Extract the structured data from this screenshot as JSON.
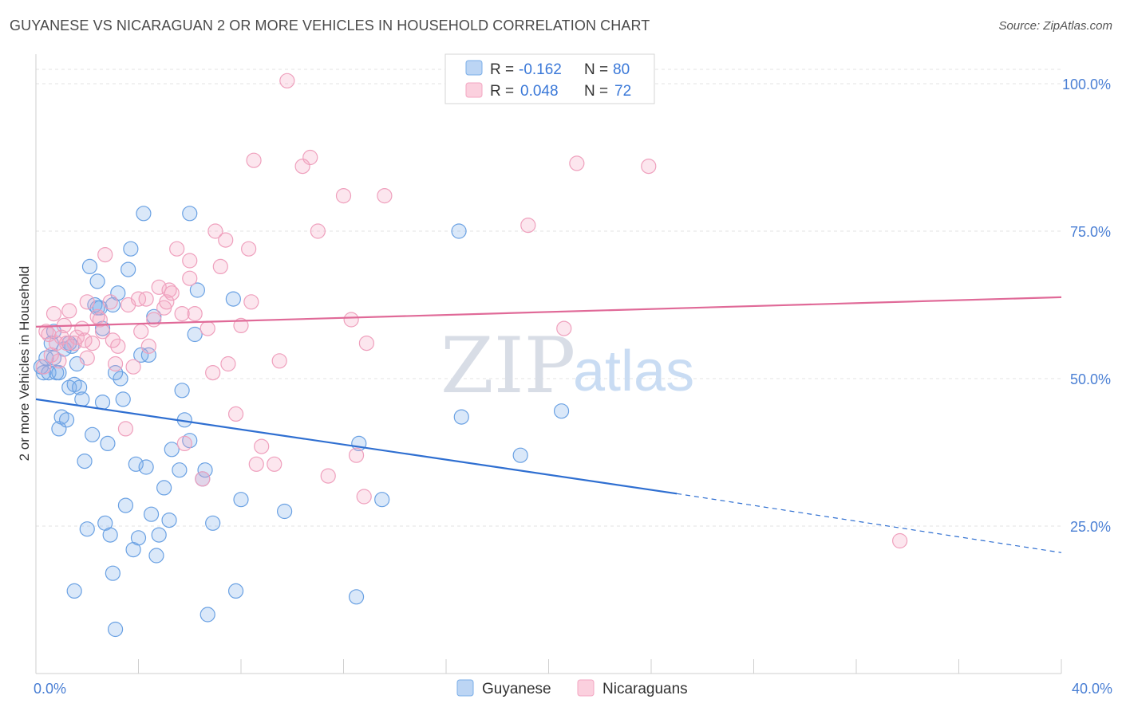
{
  "header": {
    "title": "GUYANESE VS NICARAGUAN 2 OR MORE VEHICLES IN HOUSEHOLD CORRELATION CHART",
    "source": "Source: ZipAtlas.com"
  },
  "watermark": {
    "zip": "ZIP",
    "atlas": "atlas"
  },
  "legend": {
    "rows": [
      {
        "r_label": "R =",
        "r_value": "-0.162",
        "n_label": "N =",
        "n_value": "80"
      },
      {
        "r_label": "R =",
        "r_value": "0.048",
        "n_label": "N =",
        "n_value": "72"
      }
    ]
  },
  "chart_data": {
    "type": "scatter",
    "title": "GUYANESE VS NICARAGUAN 2 OR MORE VEHICLES IN HOUSEHOLD CORRELATION CHART",
    "xlabel": "",
    "ylabel": "2 or more Vehicles in Household",
    "xlim": [
      0,
      40
    ],
    "ylim": [
      0,
      105
    ],
    "x_ticks": [
      0,
      40
    ],
    "x_tick_labels": [
      "0.0%",
      "40.0%"
    ],
    "y_ticks": [
      25,
      50,
      75,
      100
    ],
    "y_tick_labels": [
      "25.0%",
      "50.0%",
      "75.0%",
      "100.0%"
    ],
    "grid": true,
    "legend_position": "top-center",
    "colors": {
      "guyanese": "#7aaee8",
      "nicaraguans": "#f3a6c2",
      "guyanese_line": "#2f6fd1",
      "nicaraguans_line": "#e06a98"
    },
    "series": [
      {
        "name": "Guyanese",
        "r": -0.162,
        "n": 80,
        "trend": {
          "x0": 0,
          "y0": 46.5,
          "x1": 25,
          "y1": 30.5,
          "dash_to_x": 40,
          "dash_to_y": 20.5
        },
        "points": [
          [
            0.2,
            52
          ],
          [
            0.3,
            51
          ],
          [
            0.4,
            53.5
          ],
          [
            0.5,
            51
          ],
          [
            0.6,
            56
          ],
          [
            0.7,
            53.5
          ],
          [
            0.8,
            51
          ],
          [
            0.9,
            51
          ],
          [
            0.9,
            41.5
          ],
          [
            1.0,
            43.5
          ],
          [
            1.1,
            55
          ],
          [
            1.2,
            43
          ],
          [
            1.3,
            48.5
          ],
          [
            1.4,
            55.5
          ],
          [
            1.5,
            49
          ],
          [
            1.5,
            14
          ],
          [
            1.6,
            52.5
          ],
          [
            1.7,
            48.5
          ],
          [
            1.8,
            46.5
          ],
          [
            1.9,
            36
          ],
          [
            2.0,
            24.5
          ],
          [
            2.1,
            69
          ],
          [
            2.2,
            40.5
          ],
          [
            2.3,
            62.5
          ],
          [
            2.4,
            66.5
          ],
          [
            2.5,
            62
          ],
          [
            2.6,
            46
          ],
          [
            2.6,
            58.5
          ],
          [
            2.7,
            25.5
          ],
          [
            2.8,
            39
          ],
          [
            2.9,
            23.5
          ],
          [
            3.0,
            62.5
          ],
          [
            3.0,
            17
          ],
          [
            3.1,
            7.5
          ],
          [
            3.2,
            64.5
          ],
          [
            3.3,
            50
          ],
          [
            3.4,
            46.5
          ],
          [
            3.5,
            28.5
          ],
          [
            3.6,
            68.5
          ],
          [
            3.7,
            72
          ],
          [
            3.8,
            21
          ],
          [
            3.9,
            35.5
          ],
          [
            4.0,
            23
          ],
          [
            4.1,
            54
          ],
          [
            4.2,
            78
          ],
          [
            4.3,
            35
          ],
          [
            4.4,
            54
          ],
          [
            4.5,
            27
          ],
          [
            4.6,
            60.5
          ],
          [
            4.7,
            20
          ],
          [
            4.8,
            23.5
          ],
          [
            5.0,
            31.5
          ],
          [
            5.2,
            26
          ],
          [
            5.3,
            38
          ],
          [
            5.6,
            34.5
          ],
          [
            5.8,
            43
          ],
          [
            5.7,
            48
          ],
          [
            6.0,
            78
          ],
          [
            6.0,
            39.5
          ],
          [
            6.2,
            57.5
          ],
          [
            6.3,
            65
          ],
          [
            6.5,
            33
          ],
          [
            6.6,
            34.5
          ],
          [
            6.7,
            10
          ],
          [
            6.9,
            25.5
          ],
          [
            7.7,
            63.5
          ],
          [
            7.8,
            14
          ],
          [
            8.0,
            29.5
          ],
          [
            9.7,
            27.5
          ],
          [
            12.5,
            13
          ],
          [
            12.6,
            39
          ],
          [
            13.5,
            29.5
          ],
          [
            16.5,
            75
          ],
          [
            16.6,
            43.5
          ],
          [
            18.9,
            37
          ],
          [
            20.5,
            44.5
          ],
          [
            0.7,
            58
          ],
          [
            1.3,
            56
          ],
          [
            2.4,
            62
          ],
          [
            3.1,
            51
          ]
        ]
      },
      {
        "name": "Nicaraguans",
        "r": 0.048,
        "n": 72,
        "trend": {
          "x0": 0,
          "y0": 58.8,
          "x1": 40,
          "y1": 63.8
        },
        "points": [
          [
            0.3,
            52
          ],
          [
            0.4,
            58
          ],
          [
            0.5,
            57.5
          ],
          [
            0.6,
            54
          ],
          [
            0.7,
            61
          ],
          [
            0.8,
            56
          ],
          [
            0.9,
            53
          ],
          [
            1.0,
            57
          ],
          [
            1.1,
            59
          ],
          [
            1.2,
            56
          ],
          [
            1.3,
            61.5
          ],
          [
            1.5,
            56
          ],
          [
            1.6,
            57
          ],
          [
            1.8,
            58.5
          ],
          [
            1.9,
            56.5
          ],
          [
            2.0,
            53.5
          ],
          [
            2.0,
            63
          ],
          [
            2.2,
            56
          ],
          [
            2.4,
            60.5
          ],
          [
            2.5,
            60
          ],
          [
            2.6,
            58
          ],
          [
            2.7,
            71
          ],
          [
            2.9,
            63
          ],
          [
            3.0,
            56.5
          ],
          [
            3.1,
            52.5
          ],
          [
            3.2,
            55.5
          ],
          [
            3.5,
            41.5
          ],
          [
            3.6,
            62.5
          ],
          [
            3.8,
            52
          ],
          [
            4.0,
            63.5
          ],
          [
            4.1,
            58
          ],
          [
            4.3,
            63.5
          ],
          [
            4.4,
            55.5
          ],
          [
            4.6,
            60
          ],
          [
            4.8,
            65.5
          ],
          [
            5.0,
            62
          ],
          [
            5.1,
            63
          ],
          [
            5.2,
            65
          ],
          [
            5.3,
            64.5
          ],
          [
            5.5,
            72
          ],
          [
            5.7,
            61
          ],
          [
            5.8,
            39
          ],
          [
            6.0,
            67
          ],
          [
            6.0,
            70
          ],
          [
            6.2,
            61
          ],
          [
            6.5,
            33
          ],
          [
            6.7,
            58.5
          ],
          [
            6.9,
            51
          ],
          [
            7.0,
            75
          ],
          [
            7.2,
            69
          ],
          [
            7.4,
            73.5
          ],
          [
            7.5,
            52.5
          ],
          [
            7.8,
            44
          ],
          [
            8.0,
            59
          ],
          [
            8.3,
            72
          ],
          [
            8.4,
            63
          ],
          [
            8.5,
            87
          ],
          [
            8.6,
            35.5
          ],
          [
            8.8,
            38.5
          ],
          [
            9.3,
            35.5
          ],
          [
            9.5,
            53
          ],
          [
            9.8,
            100.5
          ],
          [
            10.4,
            86
          ],
          [
            10.7,
            87.5
          ],
          [
            11.0,
            75
          ],
          [
            11.4,
            33.5
          ],
          [
            12.0,
            81
          ],
          [
            12.3,
            60
          ],
          [
            12.5,
            37
          ],
          [
            12.8,
            30
          ],
          [
            12.9,
            56
          ]
        ],
        "points_far": [
          [
            13.6,
            81
          ],
          [
            19.2,
            76
          ],
          [
            20.6,
            58.5
          ],
          [
            21.1,
            86.5
          ],
          [
            23.9,
            86
          ],
          [
            33.7,
            22.5
          ]
        ]
      }
    ]
  },
  "bottom_legend": {
    "items": [
      "Guyanese",
      "Nicaraguans"
    ]
  }
}
